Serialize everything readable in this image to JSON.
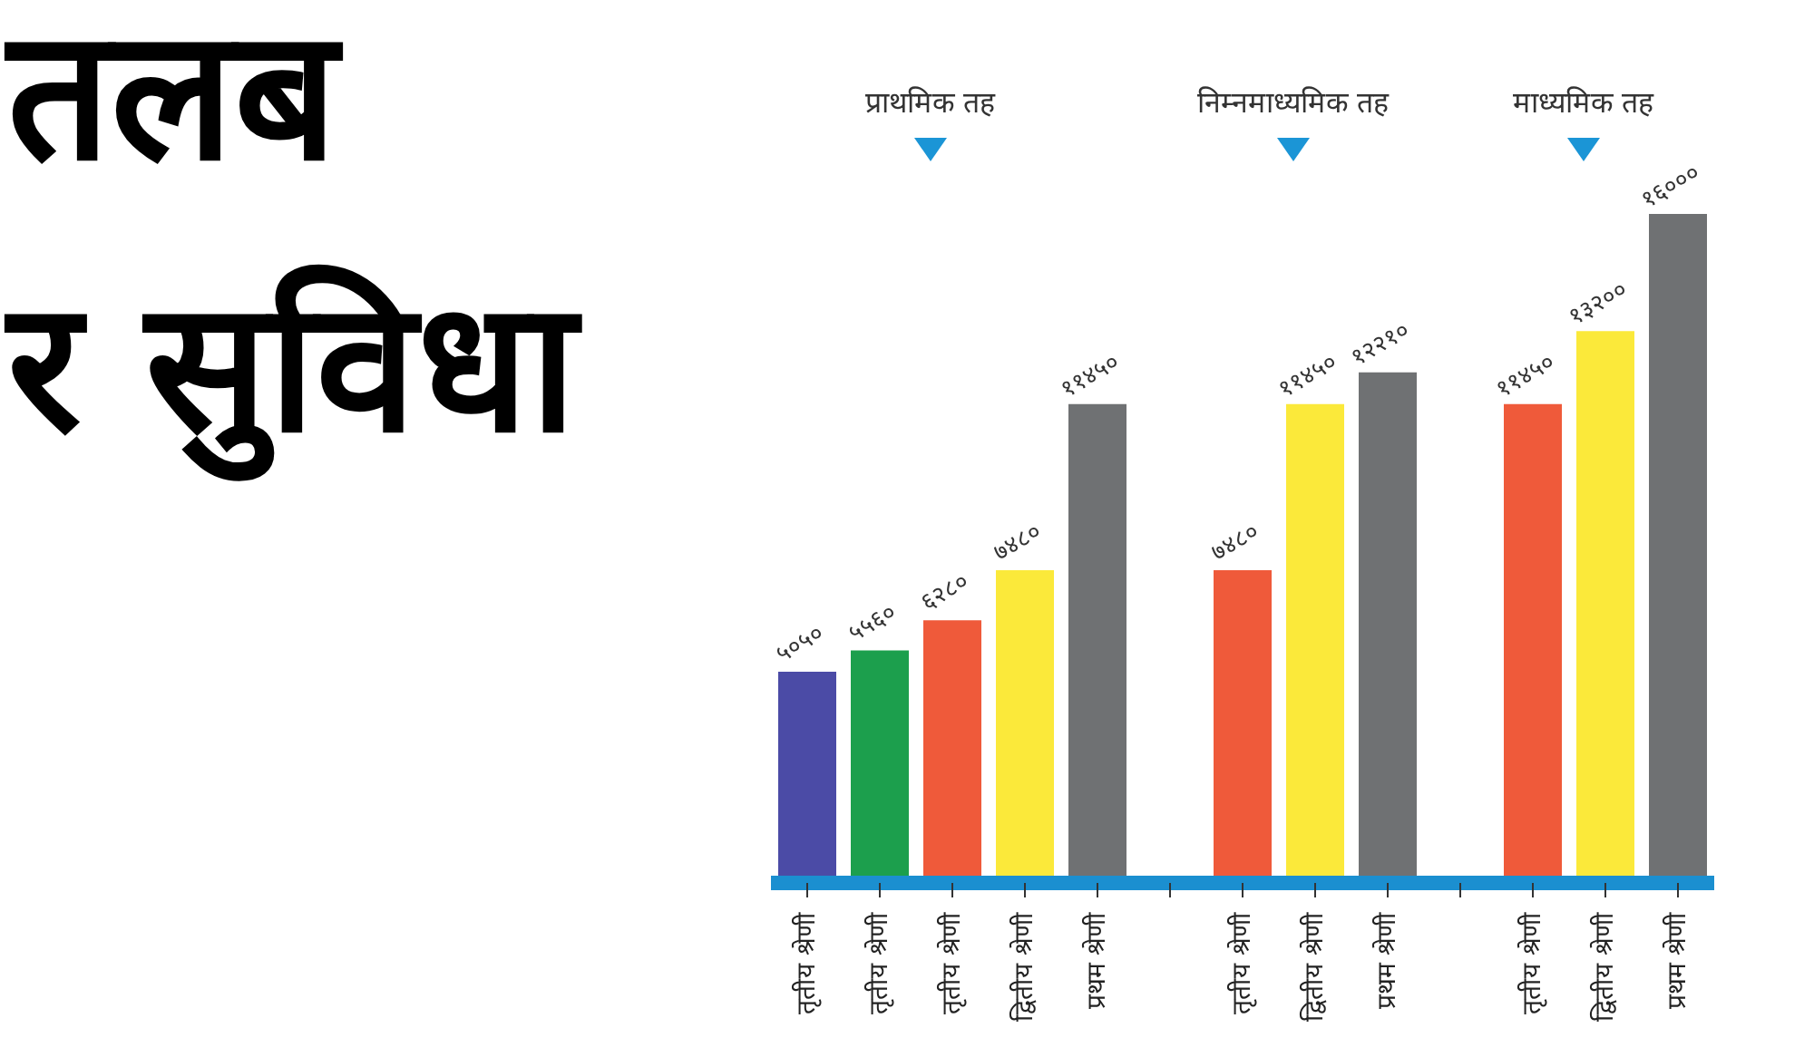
{
  "chart_data": {
    "type": "bar",
    "title": "तलब र सुविधा",
    "categories": [
      "तृतीय श्रेणी",
      "तृतीय श्रेणी",
      "तृतीय श्रेणी",
      "द्वितीय श्रेणी",
      "प्रथम श्रेणी",
      null,
      "तृतीय श्रेणी",
      "द्वितीय श्रेणी",
      "प्रथम श्रेणी",
      null,
      "तृतीय श्रेणी",
      "द्वितीय श्रेणी",
      "प्रथम श्रेणी"
    ],
    "values": [
      5050,
      5560,
      6280,
      7480,
      11450,
      null,
      7480,
      11450,
      12210,
      null,
      11450,
      13200,
      16000
    ],
    "value_labels": [
      "५०५०",
      "५५६०",
      "६२८०",
      "७४८०",
      "११४५०",
      null,
      "७४८०",
      "११४५०",
      "१२२१०",
      null,
      "११४५०",
      "१३२००",
      "१६०००"
    ],
    "colors": [
      "#4b4ba6",
      "#1c9f4d",
      "#ef5a3a",
      "#fbe93a",
      "#6f7173",
      null,
      "#ef5a3a",
      "#fbe93a",
      "#6f7173",
      null,
      "#ef5a3a",
      "#fbe93a",
      "#6f7173"
    ],
    "annotations": [
      "प्राथमिक तह",
      "निम्नमाध्यमिक तह",
      "माध्यमिक तह"
    ]
  }
}
